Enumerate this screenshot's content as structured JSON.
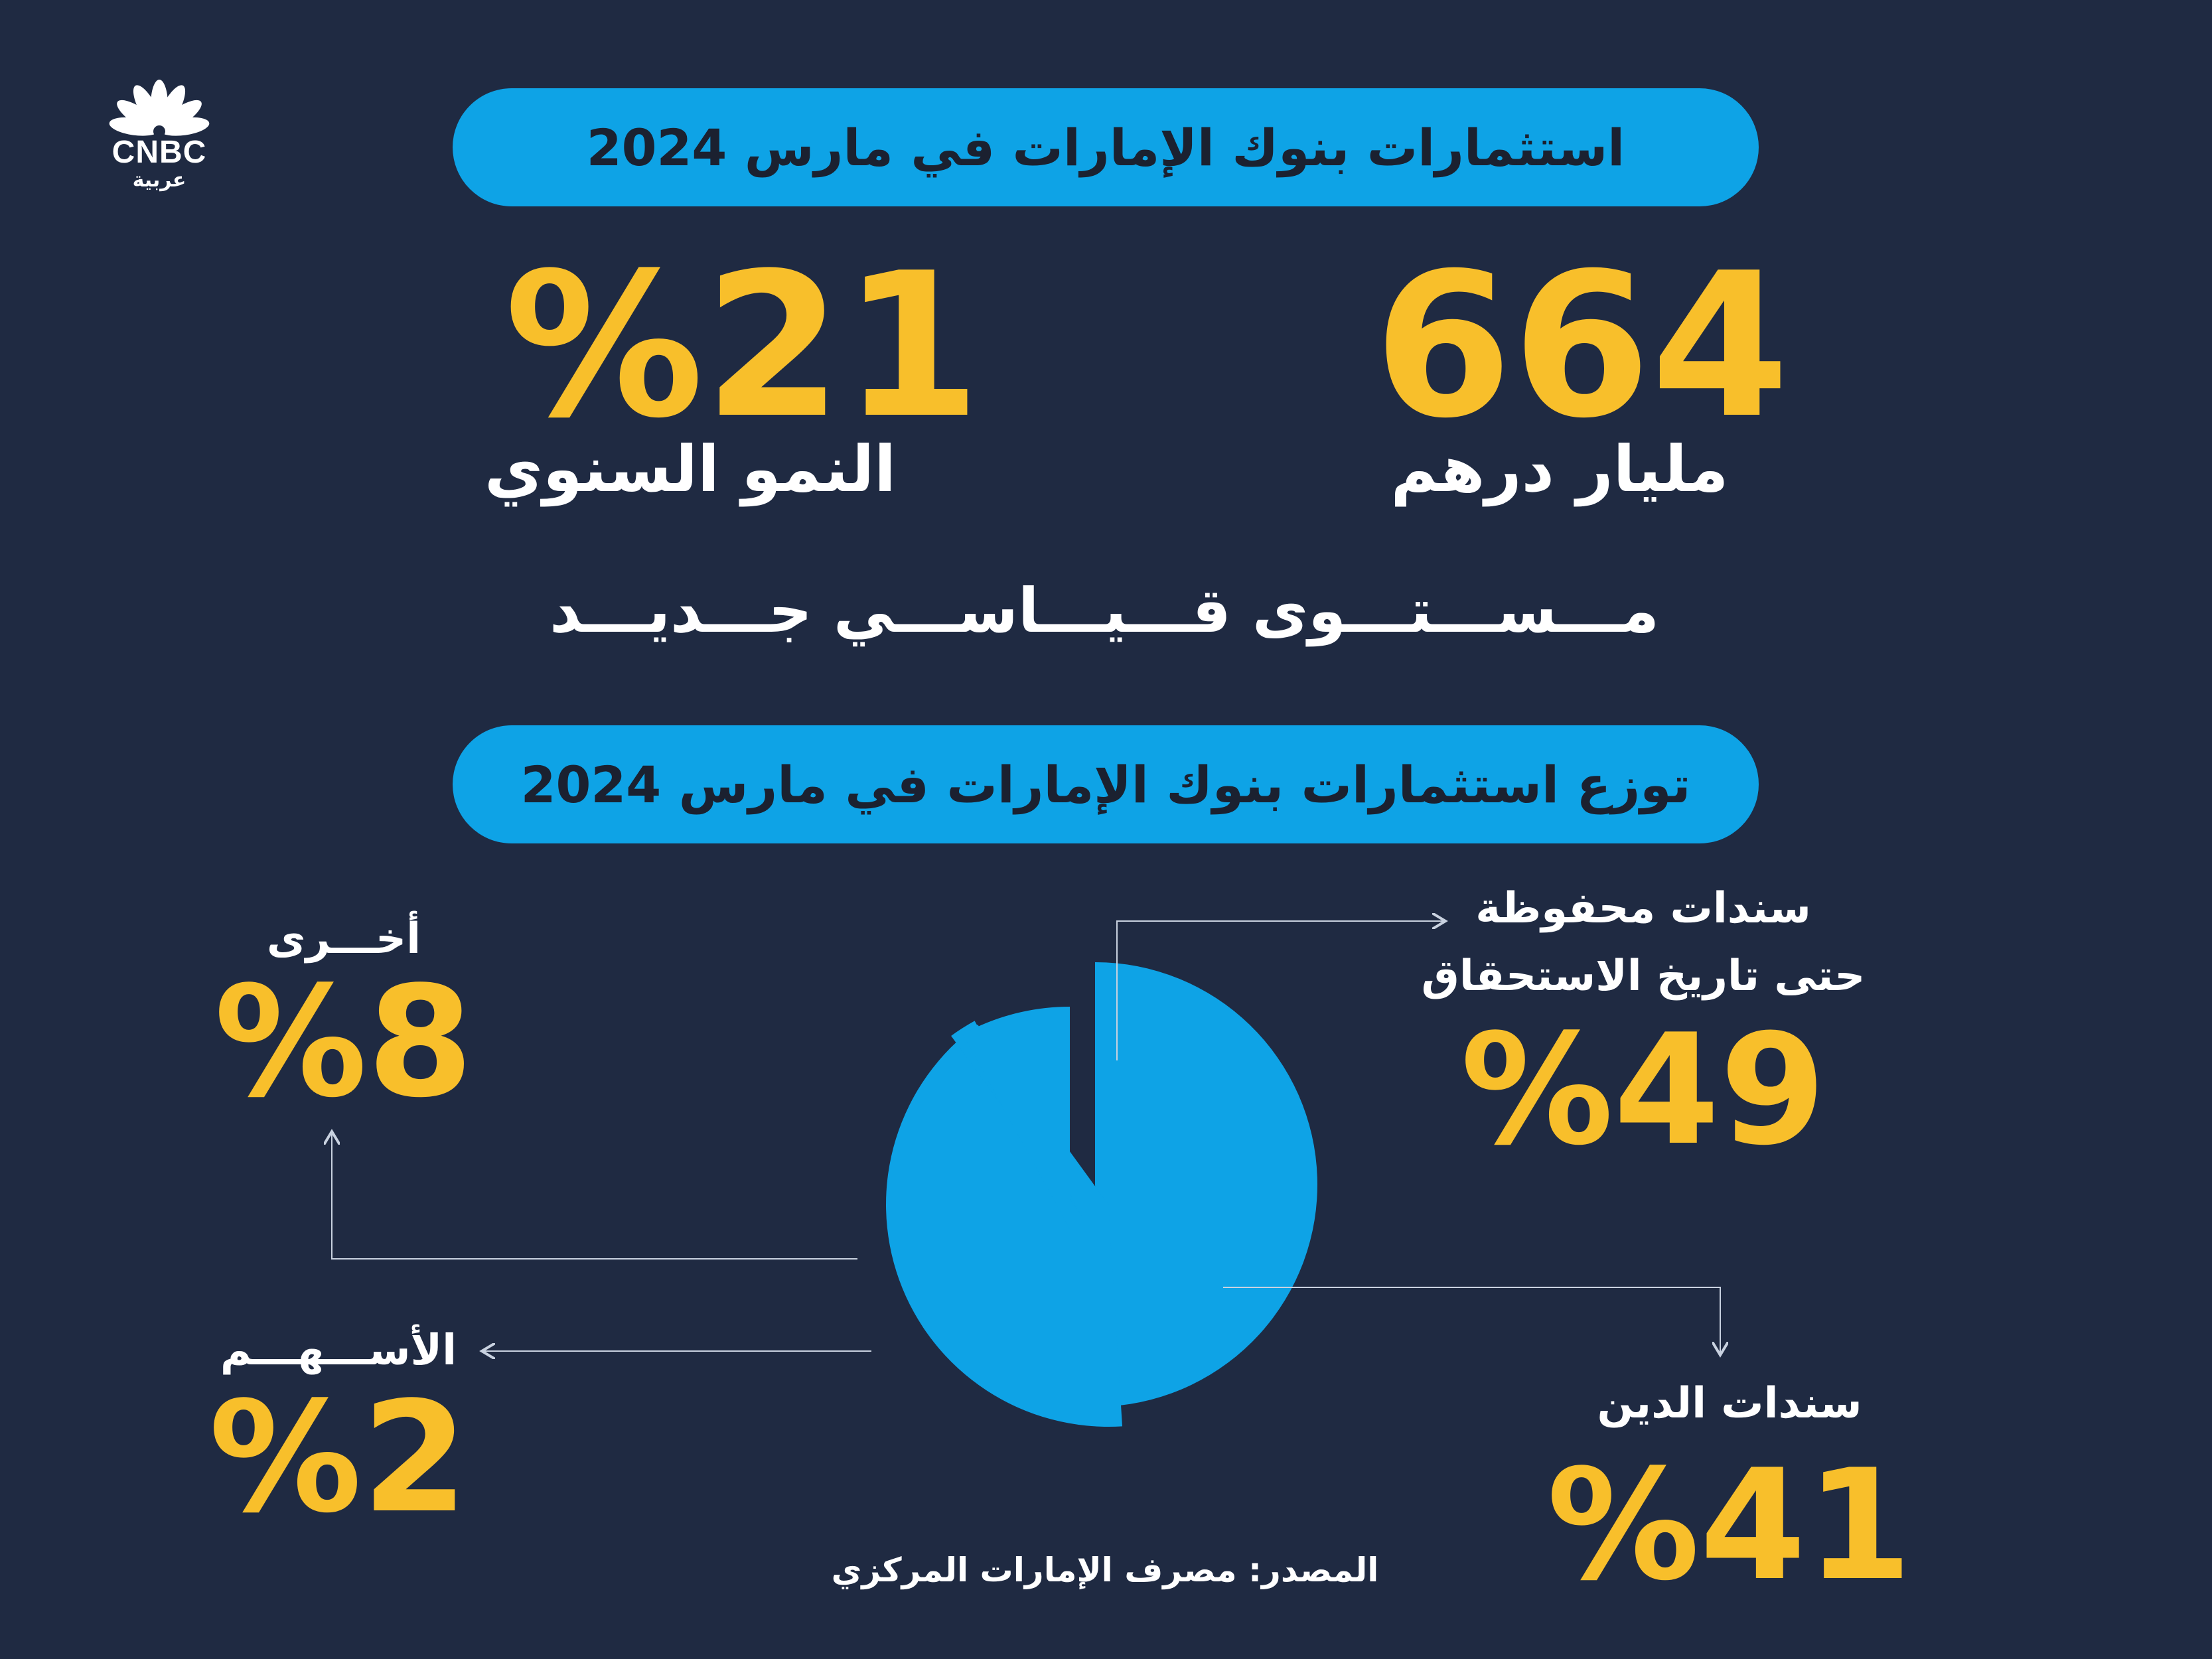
{
  "logo": {
    "name": "CNBC",
    "subtitle": "عربية"
  },
  "header_title": "استثمارات بنوك الإمارات في مارس 2024",
  "stats": {
    "growth_value": "%21",
    "growth_label": "النمو السنوي",
    "total_value": "664",
    "total_label": "مليار درهم"
  },
  "record_text": "مـــســـتـــوى قـــيـــاســـي جـــديـــد",
  "section_title": "توزع استثمارات بنوك الإمارات في مارس 2024",
  "source_text": "المصدر: مصرف الإمارات المركزي",
  "colors": {
    "background": "#1f2a42",
    "accent": "#0ea3e6",
    "highlight": "#f8bf2b"
  },
  "chart_data": {
    "type": "pie",
    "title": "توزع استثمارات بنوك الإمارات في مارس 2024",
    "unit": "%",
    "slices": [
      {
        "label_line1": "سندات محفوظة",
        "label_line2": "حتى تاريخ الاستحقاق",
        "value": 49,
        "display": "%49"
      },
      {
        "label_line1": "سندات الدين",
        "label_line2": "",
        "value": 41,
        "display": "%41"
      },
      {
        "label_line1": "الأســـهـــم",
        "label_line2": "",
        "value": 2,
        "display": "%2"
      },
      {
        "label_line1": "أخـــرى",
        "label_line2": "",
        "value": 8,
        "display": "%8"
      }
    ]
  }
}
